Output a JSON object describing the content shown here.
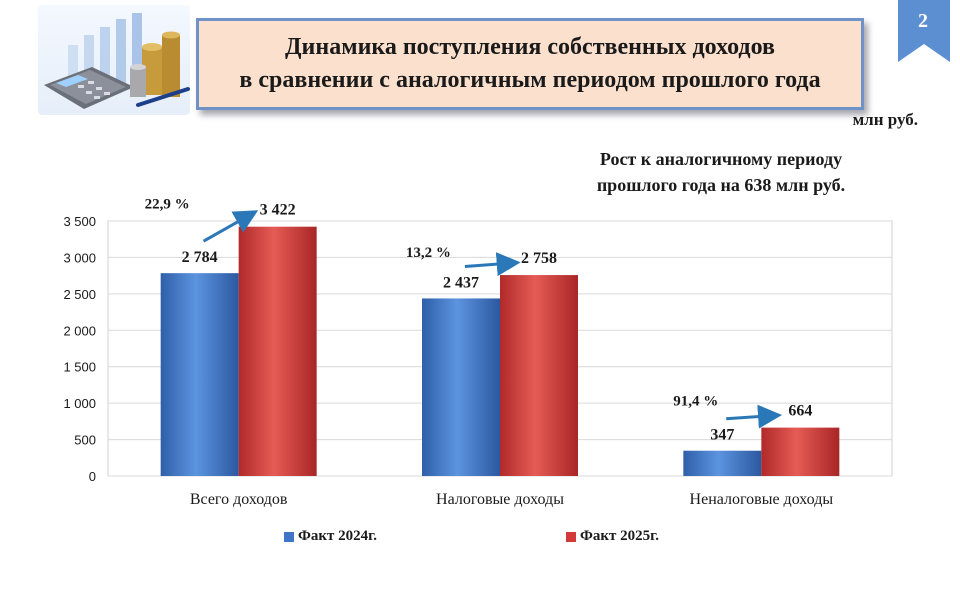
{
  "slide": {
    "page_number": "2",
    "title_line1": "Динамика поступления собственных доходов",
    "title_line2": "в сравнении с аналогичным периодом прошлого года",
    "units": "млн руб.",
    "growth_note_line1": "Рост  к аналогичному периоду",
    "growth_note_line2": "прошлого года на 638 млн руб.",
    "accent_color": "#6f93c6"
  },
  "chart_data": {
    "type": "bar",
    "categories": [
      "Всего доходов",
      "Налоговые доходы",
      "Неналоговые доходы"
    ],
    "series": [
      {
        "name": "Факт 2024г.",
        "values": [
          2784,
          2437,
          347
        ],
        "labels": [
          "2 784",
          "2 437",
          "347"
        ],
        "color": "#3f75c9"
      },
      {
        "name": "Факт 2025г.",
        "values": [
          3422,
          2758,
          664
        ],
        "labels": [
          "3 422",
          "2 758",
          "664"
        ],
        "color": "#d23a3a"
      }
    ],
    "growth_labels": [
      "22,9 %",
      "13,2 %",
      "91,4 %"
    ],
    "growth_arrow_color": "#2a78b8",
    "ylim": [
      0,
      3500
    ],
    "yticks": [
      0,
      500,
      1000,
      1500,
      2000,
      2500,
      3000,
      3500
    ],
    "ytick_labels": [
      "0",
      "500",
      "1 000",
      "1 500",
      "2 000",
      "2 500",
      "3 000",
      "3 500"
    ],
    "grid": true,
    "legend_position": "bottom"
  }
}
